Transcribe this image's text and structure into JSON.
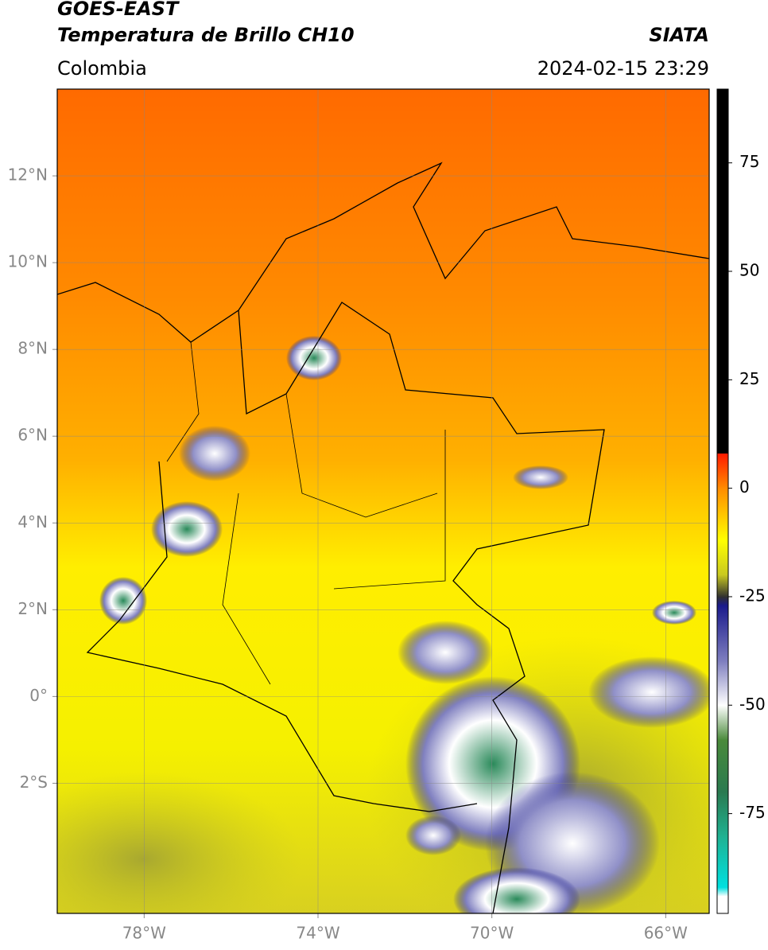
{
  "header": {
    "title": "GOES-EAST",
    "subtitle": "Temperatura de Brillo CH10",
    "source": "SIATA",
    "region": "Colombia",
    "datetime": "2024-02-15 23:29"
  },
  "map": {
    "xlim": [
      -80,
      -65
    ],
    "ylim": [
      -5,
      14
    ],
    "xticks": [
      {
        "value": -78,
        "label": "78°W"
      },
      {
        "value": -74,
        "label": "74°W"
      },
      {
        "value": -70,
        "label": "70°W"
      },
      {
        "value": -66,
        "label": "66°W"
      }
    ],
    "yticks": [
      {
        "value": 12,
        "label": "12°N"
      },
      {
        "value": 10,
        "label": "10°N"
      },
      {
        "value": 8,
        "label": "8°N"
      },
      {
        "value": 6,
        "label": "6°N"
      },
      {
        "value": 4,
        "label": "4°N"
      },
      {
        "value": 2,
        "label": "2°N"
      },
      {
        "value": 0,
        "label": "0°"
      },
      {
        "value": -2,
        "label": "2°S"
      }
    ],
    "grid": true
  },
  "colorbar": {
    "lim": [
      -98,
      92
    ],
    "ticks": [
      75,
      50,
      25,
      0,
      -25,
      -50,
      -75
    ],
    "colormap": [
      {
        "value": 92,
        "color": "#000000"
      },
      {
        "value": 8,
        "color": "#000000"
      },
      {
        "value": 8,
        "color": "#ff1a00"
      },
      {
        "value": 0,
        "color": "#ff8c00"
      },
      {
        "value": -12,
        "color": "#ffff00"
      },
      {
        "value": -20,
        "color": "#c8c820"
      },
      {
        "value": -25,
        "color": "#303030"
      },
      {
        "value": -27,
        "color": "#1a1a8c"
      },
      {
        "value": -40,
        "color": "#8080c0"
      },
      {
        "value": -50,
        "color": "#ffffff"
      },
      {
        "value": -58,
        "color": "#4a8a3a"
      },
      {
        "value": -70,
        "color": "#2a7a50"
      },
      {
        "value": -80,
        "color": "#20b090"
      },
      {
        "value": -92,
        "color": "#00e0e0"
      },
      {
        "value": -94,
        "color": "#ffffff"
      },
      {
        "value": -98,
        "color": "#ffffff"
      }
    ]
  }
}
